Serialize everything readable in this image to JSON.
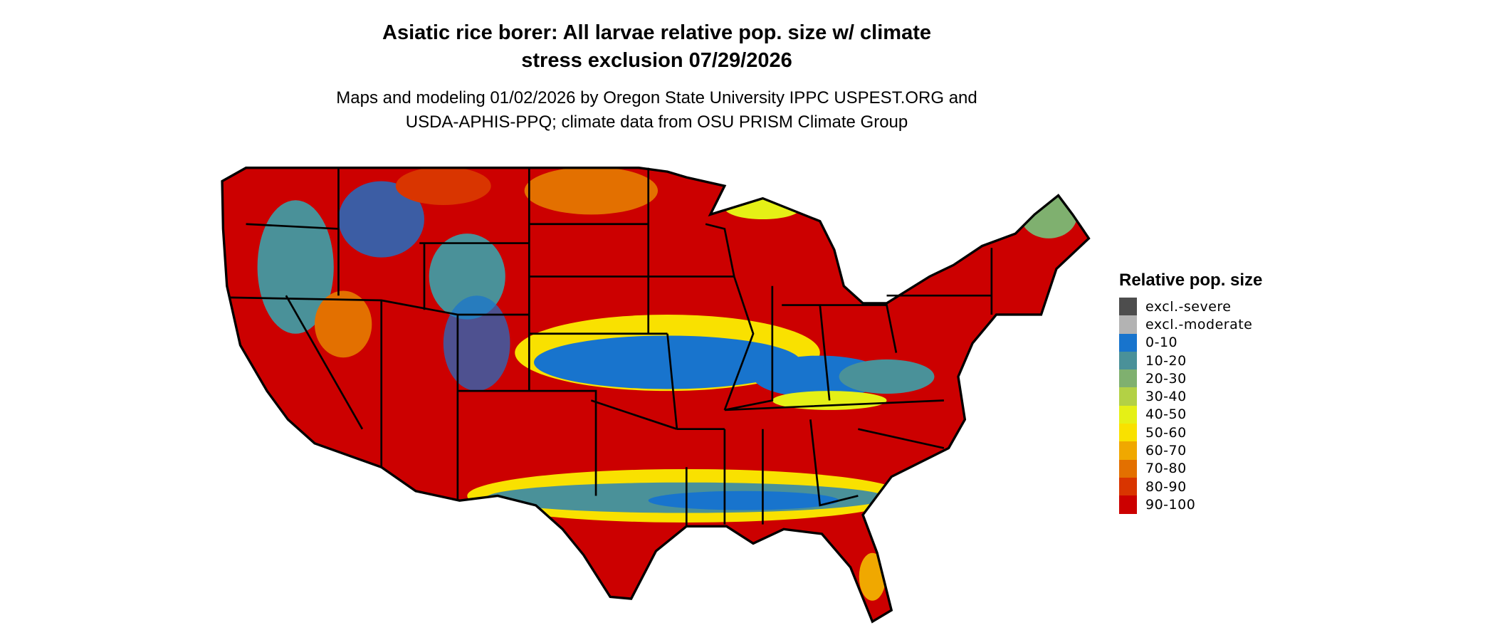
{
  "title": {
    "line1": "Asiatic rice borer: All larvae relative pop. size w/ climate",
    "line2": "stress exclusion 07/29/2026"
  },
  "subtitle": {
    "line1": "Maps and modeling 01/02/2026 by Oregon State University IPPC USPEST.ORG and",
    "line2": "USDA-APHIS-PPQ; climate data from OSU PRISM Climate Group"
  },
  "legend": {
    "title": "Relative pop. size",
    "items": [
      {
        "label": "excl.-severe",
        "color": "#4d4d4d"
      },
      {
        "label": "excl.-moderate",
        "color": "#b3b3b3"
      },
      {
        "label": "0-10",
        "color": "#1874cd"
      },
      {
        "label": "10-20",
        "color": "#4a9199"
      },
      {
        "label": "20-30",
        "color": "#7fb06f"
      },
      {
        "label": "30-40",
        "color": "#b3d145"
      },
      {
        "label": "40-50",
        "color": "#e5f016"
      },
      {
        "label": "50-60",
        "color": "#f9e100"
      },
      {
        "label": "60-70",
        "color": "#f0a800"
      },
      {
        "label": "70-80",
        "color": "#e37000"
      },
      {
        "label": "80-90",
        "color": "#d93500"
      },
      {
        "label": "90-100",
        "color": "#cc0000"
      }
    ]
  },
  "map": {
    "region": "conterminous-united-states",
    "dominant_class": "90-100"
  }
}
